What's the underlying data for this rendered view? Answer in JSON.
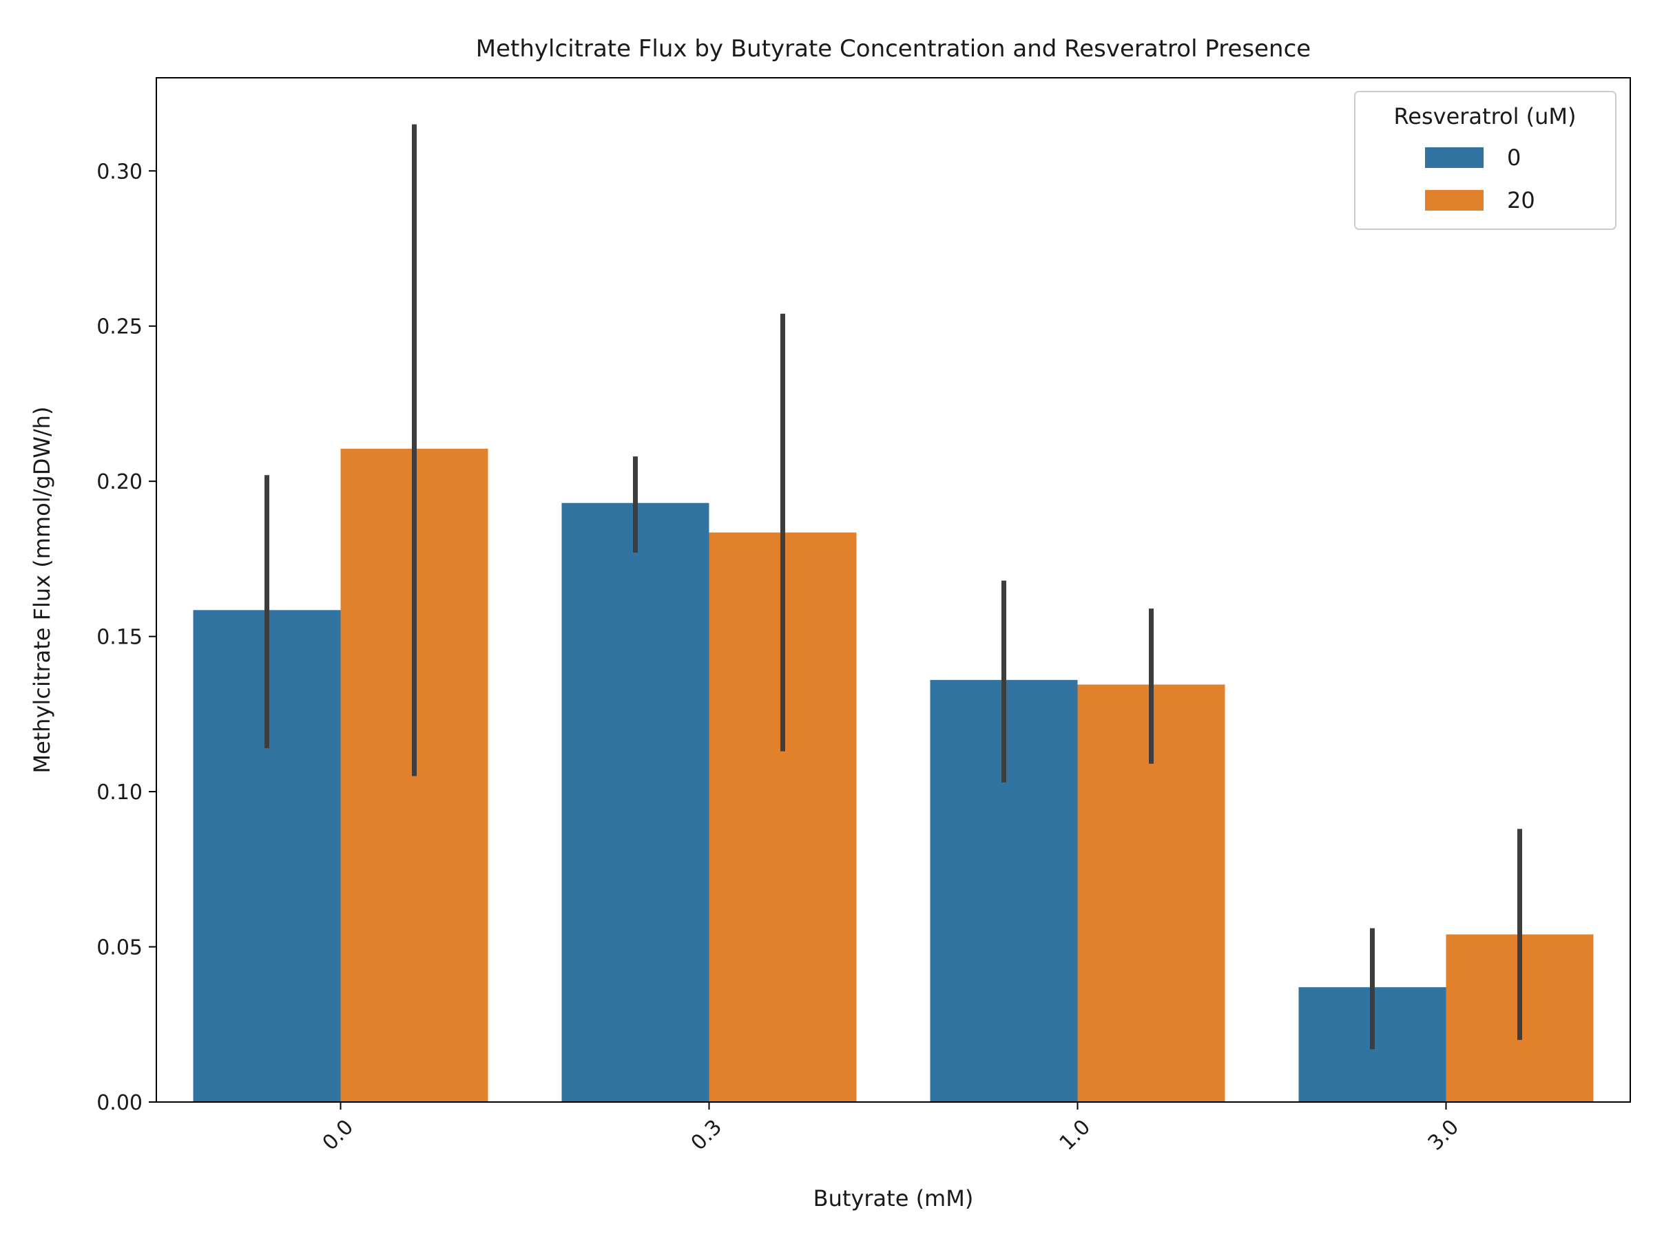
{
  "chart_data": {
    "type": "bar",
    "title": "Methylcitrate Flux by Butyrate Concentration and Resveratrol Presence",
    "xlabel": "Butyrate (mM)",
    "ylabel": "Methylcitrate Flux (mmol/gDW/h)",
    "ylim": [
      0,
      0.33
    ],
    "yticks": [
      "0.00",
      "0.05",
      "0.10",
      "0.15",
      "0.20",
      "0.25",
      "0.30"
    ],
    "categories": [
      "0.0",
      "0.3",
      "1.0",
      "3.0"
    ],
    "grid": false,
    "legend": {
      "title": "Resveratrol (uM)",
      "position": "top-right"
    },
    "series": [
      {
        "name": "0",
        "color": "#3274a1",
        "values": [
          0.1585,
          0.193,
          0.136,
          0.037
        ],
        "err_low": [
          0.114,
          0.177,
          0.103,
          0.017
        ],
        "err_high": [
          0.202,
          0.208,
          0.168,
          0.056
        ]
      },
      {
        "name": "20",
        "color": "#e1812c",
        "values": [
          0.2105,
          0.1835,
          0.1345,
          0.054
        ],
        "err_low": [
          0.105,
          0.113,
          0.109,
          0.02
        ],
        "err_high": [
          0.315,
          0.254,
          0.159,
          0.088
        ]
      }
    ]
  }
}
